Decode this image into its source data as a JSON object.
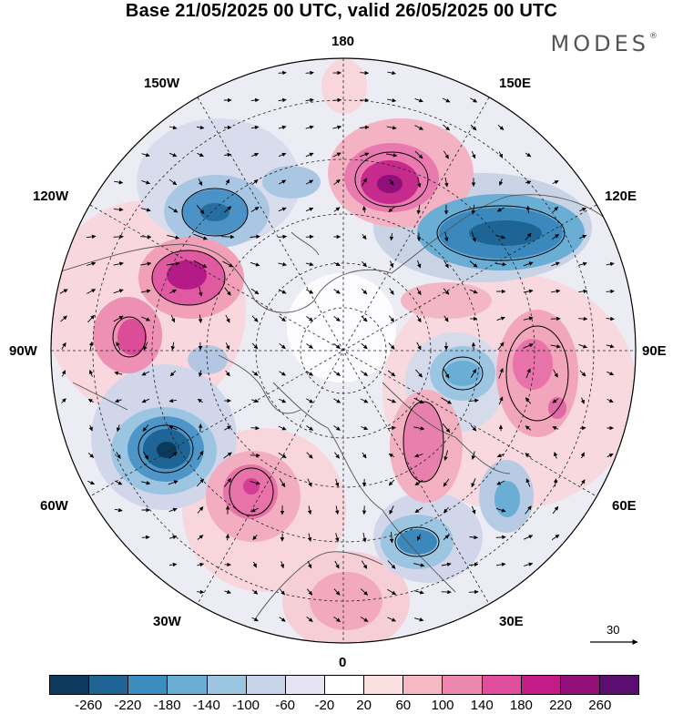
{
  "title": "Base 21/05/2025 00 UTC, valid 26/05/2025 00 UTC",
  "brand": "MODES",
  "brand_mark": "®",
  "longitude_labels": {
    "lon_180": "180",
    "lon_150e": "150E",
    "lon_120e": "120E",
    "lon_90e": "90E",
    "lon_60e": "60E",
    "lon_30e": "30E",
    "lon_0": "0",
    "lon_30w": "30W",
    "lon_60w": "60W",
    "lon_90w": "90W",
    "lon_120w": "120W",
    "lon_150w": "150W"
  },
  "reference_vector_label": "30",
  "colorbar": {
    "colors": [
      "#0b3a5c",
      "#1e6595",
      "#3b8dbf",
      "#6aaed6",
      "#9cc5e2",
      "#c7d4e8",
      "#e5e4f2",
      "#ffffff",
      "#fbe0e2",
      "#f6b8c3",
      "#ee87ad",
      "#e04f9d",
      "#c41c87",
      "#920e78",
      "#5c0e70"
    ],
    "tick_labels": [
      "-260",
      "-220",
      "-180",
      "-140",
      "-100",
      "-60",
      "-20",
      "20",
      "60",
      "100",
      "140",
      "180",
      "220",
      "260"
    ]
  },
  "map": {
    "projection": "north polar stereographic",
    "anomaly_centers": [
      {
        "name": "east-siberia-high",
        "sign": "positive",
        "level": 220
      },
      {
        "name": "north-pacific-low",
        "sign": "negative",
        "level": -180
      },
      {
        "name": "canada-high",
        "sign": "positive",
        "level": 220
      },
      {
        "name": "central-asia-low",
        "sign": "negative",
        "level": -180
      },
      {
        "name": "north-atlantic-low",
        "sign": "negative",
        "level": -220
      },
      {
        "name": "atlantic-high",
        "sign": "positive",
        "level": 180
      },
      {
        "name": "western-russia-high",
        "sign": "positive",
        "level": 140
      },
      {
        "name": "scandinavia-low",
        "sign": "negative",
        "level": -180
      },
      {
        "name": "siberia-high",
        "sign": "positive",
        "level": 140
      }
    ]
  }
}
